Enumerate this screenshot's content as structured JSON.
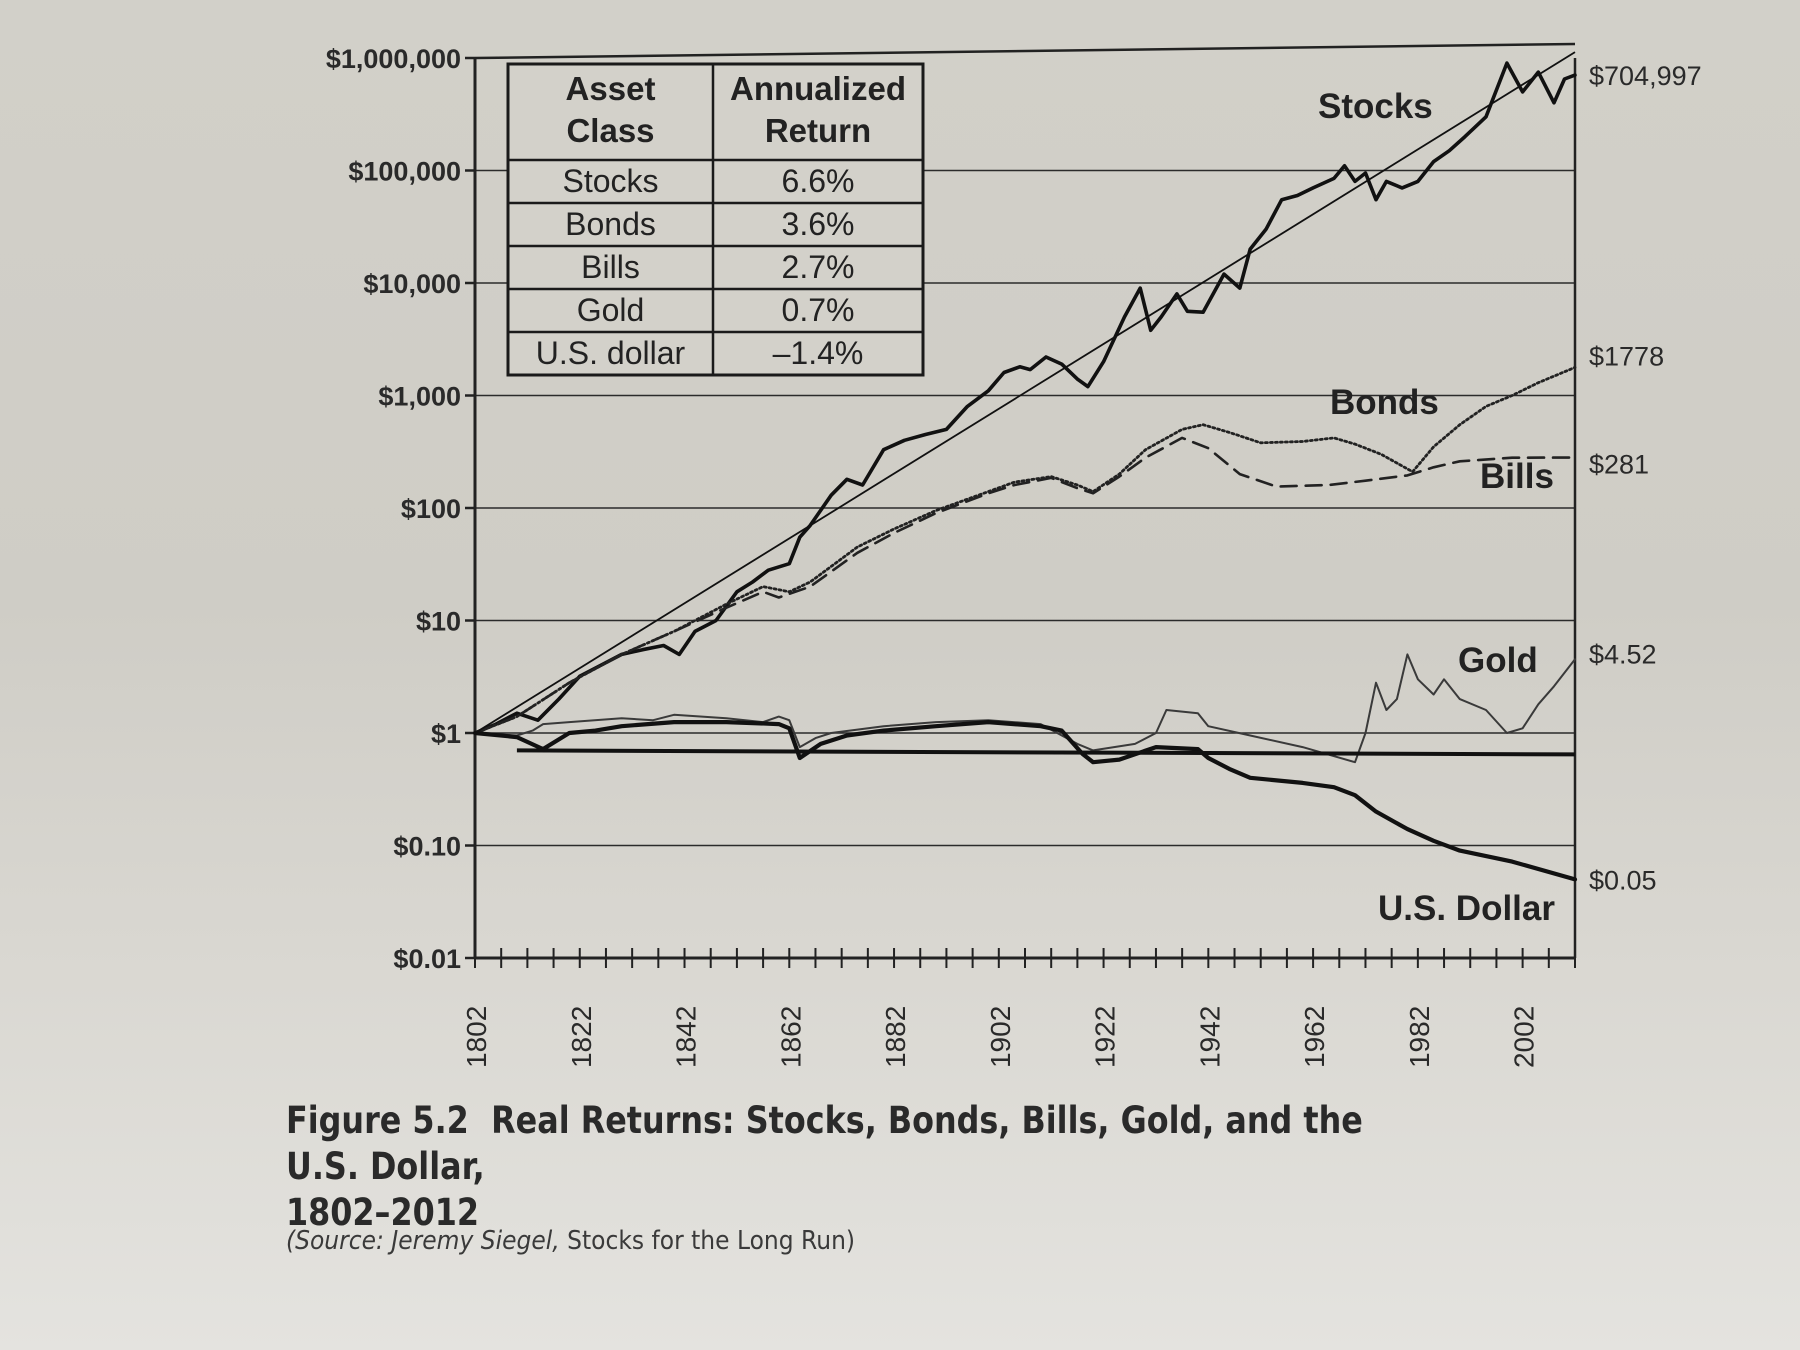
{
  "chart_data": {
    "type": "line",
    "title": "Real Returns: Stocks, Bonds, Bills, Gold, and the U.S. Dollar, 1802–2012",
    "figure_label": "Figure 5.2",
    "title_line1": "Real Returns: Stocks, Bonds, Bills, Gold, and the U.S. Dollar,",
    "title_line2": "1802–2012",
    "source_prefix": "(Source: ",
    "source_author": "Jeremy Siegel, ",
    "source_book": "Stocks for the Long Run)",
    "xlabel": "",
    "ylabel": "",
    "y_scale": "log",
    "xlim": [
      1802,
      2012
    ],
    "ylim": [
      0.01,
      1000000
    ],
    "y_ticks": [
      {
        "value": 1000000,
        "label": "$1,000,000"
      },
      {
        "value": 100000,
        "label": "$100,000"
      },
      {
        "value": 10000,
        "label": "$10,000"
      },
      {
        "value": 1000,
        "label": "$1,000"
      },
      {
        "value": 100,
        "label": "$100"
      },
      {
        "value": 10,
        "label": "$10"
      },
      {
        "value": 1,
        "label": "$1"
      },
      {
        "value": 0.1,
        "label": "$0.10"
      },
      {
        "value": 0.01,
        "label": "$0.01"
      }
    ],
    "x_ticks": [
      "1802",
      "1822",
      "1842",
      "1862",
      "1882",
      "1902",
      "1922",
      "1942",
      "1962",
      "1982",
      "2002"
    ],
    "series": [
      {
        "name": "Stocks",
        "style": "solid",
        "weight": "bold",
        "end_label": "$704,997",
        "points": [
          [
            1802,
            1
          ],
          [
            1806,
            1.2
          ],
          [
            1810,
            1.5
          ],
          [
            1814,
            1.3
          ],
          [
            1818,
            2
          ],
          [
            1822,
            3.2
          ],
          [
            1826,
            4
          ],
          [
            1830,
            5
          ],
          [
            1834,
            5.5
          ],
          [
            1838,
            6
          ],
          [
            1841,
            5
          ],
          [
            1844,
            8
          ],
          [
            1848,
            10
          ],
          [
            1852,
            18
          ],
          [
            1855,
            22
          ],
          [
            1858,
            28
          ],
          [
            1862,
            32
          ],
          [
            1864,
            55
          ],
          [
            1866,
            70
          ],
          [
            1870,
            130
          ],
          [
            1873,
            180
          ],
          [
            1876,
            160
          ],
          [
            1880,
            330
          ],
          [
            1884,
            400
          ],
          [
            1888,
            450
          ],
          [
            1892,
            500
          ],
          [
            1896,
            800
          ],
          [
            1900,
            1100
          ],
          [
            1903,
            1600
          ],
          [
            1906,
            1800
          ],
          [
            1908,
            1700
          ],
          [
            1911,
            2200
          ],
          [
            1914,
            1900
          ],
          [
            1917,
            1400
          ],
          [
            1919,
            1200
          ],
          [
            1922,
            2000
          ],
          [
            1926,
            5000
          ],
          [
            1929,
            9000
          ],
          [
            1931,
            3800
          ],
          [
            1933,
            5000
          ],
          [
            1936,
            8000
          ],
          [
            1938,
            5600
          ],
          [
            1941,
            5500
          ],
          [
            1945,
            12000
          ],
          [
            1948,
            9000
          ],
          [
            1950,
            20000
          ],
          [
            1953,
            30000
          ],
          [
            1956,
            55000
          ],
          [
            1959,
            60000
          ],
          [
            1962,
            70000
          ],
          [
            1966,
            85000
          ],
          [
            1968,
            110000
          ],
          [
            1970,
            80000
          ],
          [
            1972,
            95000
          ],
          [
            1974,
            55000
          ],
          [
            1976,
            80000
          ],
          [
            1979,
            70000
          ],
          [
            1982,
            80000
          ],
          [
            1985,
            120000
          ],
          [
            1988,
            150000
          ],
          [
            1991,
            200000
          ],
          [
            1995,
            300000
          ],
          [
            1999,
            900000
          ],
          [
            2002,
            500000
          ],
          [
            2005,
            750000
          ],
          [
            2008,
            400000
          ],
          [
            2010,
            650000
          ],
          [
            2012,
            704997
          ]
        ]
      },
      {
        "name": "Bonds",
        "style": "dotted",
        "weight": "normal",
        "end_label": "$1778",
        "points": [
          [
            1802,
            1
          ],
          [
            1810,
            1.4
          ],
          [
            1820,
            2.8
          ],
          [
            1830,
            5
          ],
          [
            1840,
            8
          ],
          [
            1850,
            14
          ],
          [
            1857,
            20
          ],
          [
            1862,
            18
          ],
          [
            1866,
            22
          ],
          [
            1875,
            45
          ],
          [
            1882,
            65
          ],
          [
            1890,
            95
          ],
          [
            1900,
            140
          ],
          [
            1905,
            170
          ],
          [
            1912,
            190
          ],
          [
            1917,
            160
          ],
          [
            1920,
            140
          ],
          [
            1925,
            200
          ],
          [
            1930,
            330
          ],
          [
            1937,
            500
          ],
          [
            1941,
            550
          ],
          [
            1946,
            470
          ],
          [
            1952,
            380
          ],
          [
            1960,
            390
          ],
          [
            1966,
            420
          ],
          [
            1970,
            370
          ],
          [
            1975,
            300
          ],
          [
            1981,
            210
          ],
          [
            1985,
            350
          ],
          [
            1990,
            550
          ],
          [
            1995,
            800
          ],
          [
            2000,
            1000
          ],
          [
            2005,
            1300
          ],
          [
            2012,
            1778
          ]
        ]
      },
      {
        "name": "Bills",
        "style": "dashed",
        "weight": "normal",
        "end_label": "$281",
        "points": [
          [
            1802,
            1
          ],
          [
            1810,
            1.4
          ],
          [
            1820,
            2.8
          ],
          [
            1830,
            5
          ],
          [
            1840,
            8
          ],
          [
            1850,
            13
          ],
          [
            1857,
            18
          ],
          [
            1860,
            16
          ],
          [
            1866,
            20
          ],
          [
            1875,
            40
          ],
          [
            1882,
            60
          ],
          [
            1890,
            90
          ],
          [
            1900,
            135
          ],
          [
            1905,
            160
          ],
          [
            1912,
            185
          ],
          [
            1917,
            150
          ],
          [
            1920,
            135
          ],
          [
            1925,
            190
          ],
          [
            1930,
            280
          ],
          [
            1937,
            420
          ],
          [
            1942,
            340
          ],
          [
            1948,
            200
          ],
          [
            1955,
            155
          ],
          [
            1965,
            160
          ],
          [
            1972,
            175
          ],
          [
            1980,
            195
          ],
          [
            1985,
            230
          ],
          [
            1990,
            260
          ],
          [
            2000,
            280
          ],
          [
            2012,
            281
          ]
        ]
      },
      {
        "name": "Gold",
        "style": "solid",
        "weight": "normal",
        "end_label": "$4.52",
        "points": [
          [
            1802,
            1
          ],
          [
            1810,
            0.95
          ],
          [
            1813,
            1.05
          ],
          [
            1815,
            1.2
          ],
          [
            1820,
            1.25
          ],
          [
            1830,
            1.35
          ],
          [
            1836,
            1.3
          ],
          [
            1840,
            1.45
          ],
          [
            1850,
            1.35
          ],
          [
            1857,
            1.25
          ],
          [
            1860,
            1.4
          ],
          [
            1862,
            1.3
          ],
          [
            1864,
            0.75
          ],
          [
            1867,
            0.9
          ],
          [
            1870,
            1.0
          ],
          [
            1880,
            1.15
          ],
          [
            1890,
            1.25
          ],
          [
            1900,
            1.3
          ],
          [
            1910,
            1.2
          ],
          [
            1917,
            0.8
          ],
          [
            1920,
            0.7
          ],
          [
            1928,
            0.8
          ],
          [
            1932,
            1.0
          ],
          [
            1934,
            1.6
          ],
          [
            1940,
            1.5
          ],
          [
            1942,
            1.15
          ],
          [
            1950,
            0.95
          ],
          [
            1960,
            0.75
          ],
          [
            1970,
            0.55
          ],
          [
            1972,
            1.0
          ],
          [
            1974,
            2.8
          ],
          [
            1976,
            1.6
          ],
          [
            1978,
            2.0
          ],
          [
            1980,
            5.0
          ],
          [
            1982,
            3.0
          ],
          [
            1985,
            2.2
          ],
          [
            1987,
            3.0
          ],
          [
            1990,
            2.0
          ],
          [
            1995,
            1.6
          ],
          [
            1999,
            1.0
          ],
          [
            2002,
            1.1
          ],
          [
            2005,
            1.8
          ],
          [
            2008,
            2.6
          ],
          [
            2012,
            4.52
          ]
        ]
      },
      {
        "name": "U.S. Dollar",
        "style": "solid",
        "weight": "heavy",
        "end_label": "$0.05",
        "points": [
          [
            1802,
            1
          ],
          [
            1810,
            0.92
          ],
          [
            1815,
            0.72
          ],
          [
            1820,
            1.0
          ],
          [
            1825,
            1.05
          ],
          [
            1830,
            1.15
          ],
          [
            1840,
            1.25
          ],
          [
            1850,
            1.25
          ],
          [
            1860,
            1.2
          ],
          [
            1862,
            1.1
          ],
          [
            1864,
            0.6
          ],
          [
            1868,
            0.8
          ],
          [
            1873,
            0.95
          ],
          [
            1880,
            1.05
          ],
          [
            1890,
            1.15
          ],
          [
            1900,
            1.25
          ],
          [
            1910,
            1.15
          ],
          [
            1914,
            1.05
          ],
          [
            1918,
            0.65
          ],
          [
            1920,
            0.55
          ],
          [
            1925,
            0.58
          ],
          [
            1932,
            0.75
          ],
          [
            1940,
            0.72
          ],
          [
            1942,
            0.6
          ],
          [
            1946,
            0.48
          ],
          [
            1950,
            0.4
          ],
          [
            1960,
            0.36
          ],
          [
            1966,
            0.33
          ],
          [
            1970,
            0.28
          ],
          [
            1974,
            0.2
          ],
          [
            1980,
            0.14
          ],
          [
            1985,
            0.11
          ],
          [
            1990,
            0.09
          ],
          [
            2000,
            0.072
          ],
          [
            2012,
            0.05
          ]
        ]
      }
    ],
    "series_labels": [
      "Stocks",
      "Bonds",
      "Bills",
      "Gold",
      "U.S. Dollar"
    ],
    "reference_line": {
      "value": 0.7
    },
    "table": {
      "headers": [
        "Asset Class",
        "Annualized Return"
      ],
      "header_lines": [
        [
          "Asset",
          "Class"
        ],
        [
          "Annualized",
          "Return"
        ]
      ],
      "rows": [
        [
          "Stocks",
          "6.6%"
        ],
        [
          "Bonds",
          "3.6%"
        ],
        [
          "Bills",
          "2.7%"
        ],
        [
          "Gold",
          "0.7%"
        ],
        [
          "U.S. dollar",
          "–1.4%"
        ]
      ]
    }
  }
}
